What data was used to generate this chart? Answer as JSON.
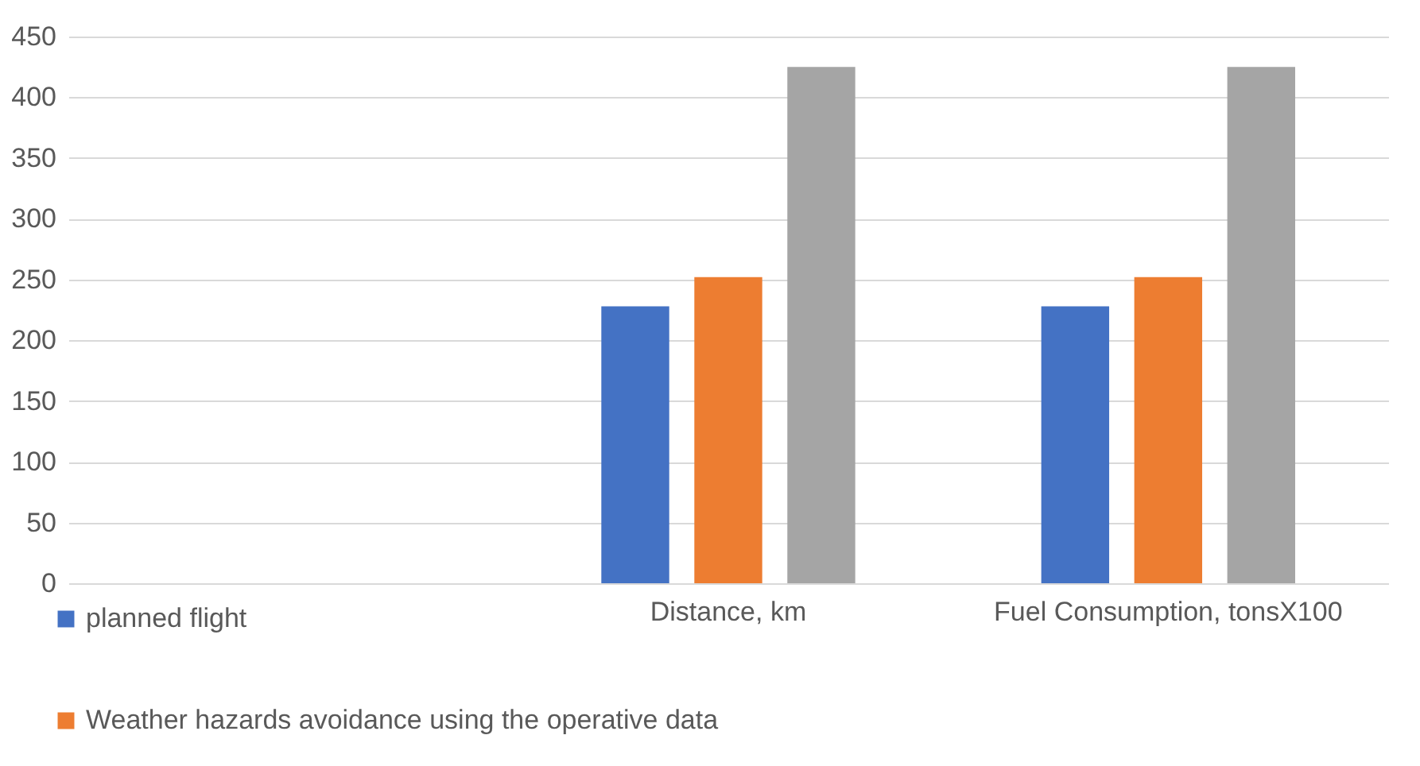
{
  "chart_data": {
    "type": "bar",
    "categories": [
      null,
      "Distance, km",
      "Fuel Consumption, tonsX100"
    ],
    "series": [
      {
        "name": "planned flight",
        "color": "#4472c4",
        "values": [
          null,
          228,
          228
        ]
      },
      {
        "name": "Weather hazards avoidance using the operative data",
        "color": "#ed7d31",
        "values": [
          null,
          252,
          252
        ]
      },
      {
        "color": "#a5a5a5",
        "values": [
          null,
          425,
          425
        ]
      }
    ],
    "ylim": [
      0,
      450
    ],
    "yticks": [
      0,
      50,
      100,
      150,
      200,
      250,
      300,
      350,
      400,
      450
    ],
    "grid": "y",
    "legend": "bottom"
  }
}
